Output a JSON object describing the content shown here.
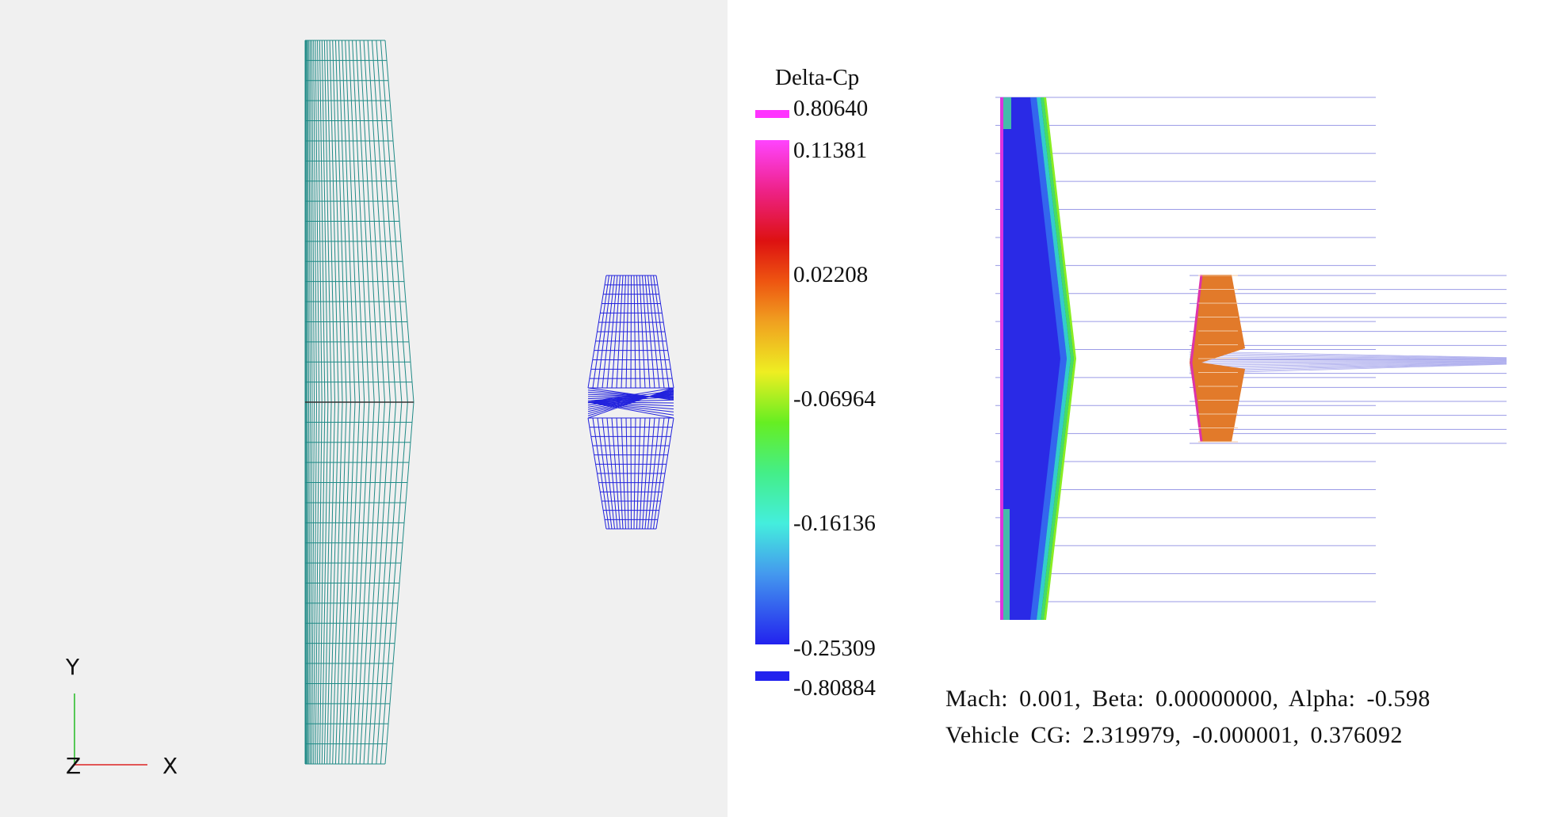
{
  "left_view": {
    "background": "#f0f0f0",
    "wireframe_colors": {
      "wing": "#1f8a86",
      "tail": "#2222dd"
    },
    "axes": {
      "y_label": "Y",
      "z_label": "Z",
      "x_label": "X",
      "y_color": "#22bb22",
      "x_color": "#dd2222"
    }
  },
  "legend": {
    "title": "Delta-Cp",
    "max_label": "0.80640",
    "min_label": "-0.80884",
    "ticks": [
      "0.11381",
      "0.02208",
      "-0.06964",
      "-0.16136",
      "-0.25309"
    ],
    "max_color": "#ff33ff",
    "min_color": "#2222ee"
  },
  "info": {
    "line1": "Mach: 0.001, Beta: 0.00000000, Alpha: -0.598",
    "line2": "Vehicle CG: 2.319979, -0.000001, 0.376092"
  }
}
